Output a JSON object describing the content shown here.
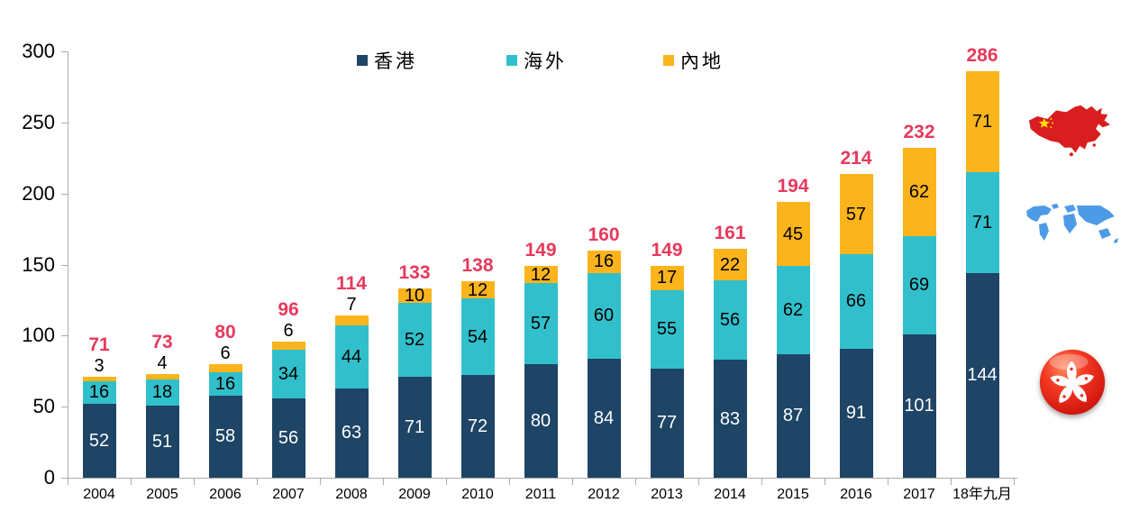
{
  "chart_data": {
    "type": "bar",
    "stacked": true,
    "title": "",
    "xlabel": "",
    "ylabel": "",
    "ylim": [
      0,
      300
    ],
    "ytick_step": 50,
    "grid": false,
    "legend_position": "top",
    "categories": [
      "2004",
      "2005",
      "2006",
      "2007",
      "2008",
      "2009",
      "2010",
      "2011",
      "2012",
      "2013",
      "2014",
      "2015",
      "2016",
      "2017",
      "18年九月"
    ],
    "series": [
      {
        "key": "hk",
        "name": "香港",
        "color": "#1E4466",
        "label_color": "#FFFFFF",
        "values": [
          52,
          51,
          58,
          56,
          63,
          71,
          72,
          80,
          84,
          77,
          83,
          87,
          91,
          101,
          144
        ]
      },
      {
        "key": "overseas",
        "name": "海外",
        "color": "#31C0CB",
        "label_color": "#000000",
        "values": [
          16,
          18,
          16,
          34,
          44,
          52,
          54,
          57,
          60,
          55,
          56,
          62,
          66,
          69,
          71
        ]
      },
      {
        "key": "mainland",
        "name": "內地",
        "color": "#FBB41C",
        "label_color": "#000000",
        "values": [
          3,
          4,
          6,
          6,
          7,
          10,
          12,
          12,
          16,
          17,
          22,
          45,
          57,
          62,
          71
        ]
      }
    ],
    "totals": [
      71,
      73,
      80,
      96,
      114,
      133,
      138,
      149,
      160,
      149,
      161,
      194,
      214,
      232,
      286
    ],
    "total_color": "#E7395C",
    "axis_color": "#ACACAC"
  },
  "icons": {
    "china_map": "china-map-icon",
    "world_map": "world-map-icon",
    "hk_flag": "hong-kong-flag-icon"
  }
}
